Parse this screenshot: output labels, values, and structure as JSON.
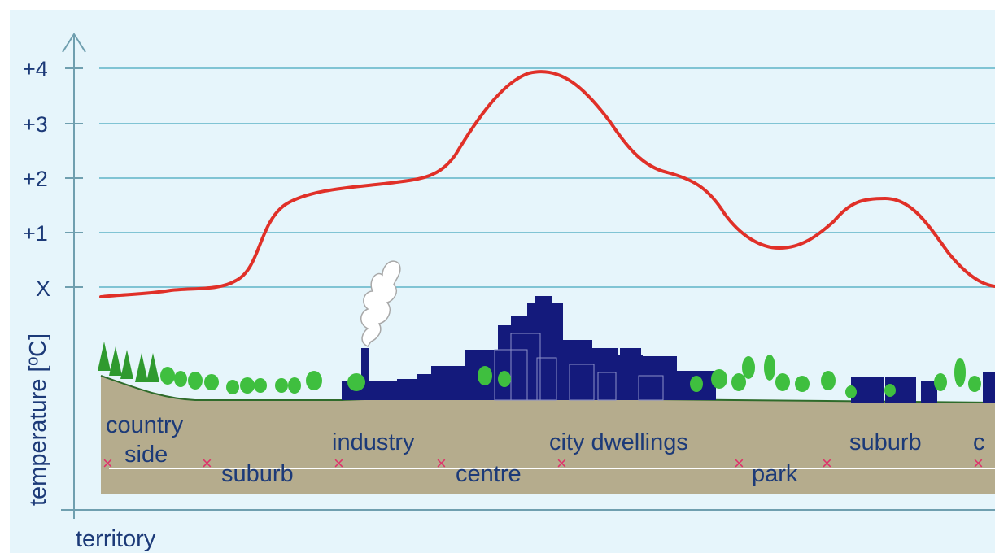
{
  "chart_data": {
    "type": "line",
    "xlabel": "territory",
    "ylabel": "temperature [ºC]",
    "y_ticks": [
      "+4",
      "+3",
      "+2",
      "+1",
      "X"
    ],
    "ylim": [
      "X",
      "+4"
    ],
    "grid": true,
    "series": [
      {
        "color": "#e03028",
        "x_zones": [
          "country side",
          "suburb",
          "industry",
          "centre",
          "city dwellings",
          "park",
          "suburb",
          "c"
        ],
        "points": [
          [
            "country side",
            0.15
          ],
          [
            "suburb",
            0.2
          ],
          [
            "industry",
            1.7
          ],
          [
            "centre",
            2.0
          ],
          [
            "city dwellings",
            4.0
          ],
          [
            "city dwellings",
            2.1
          ],
          [
            "park",
            0.75
          ],
          [
            "suburb",
            1.65
          ],
          [
            "c",
            0.0
          ]
        ]
      }
    ],
    "zone_labels": [
      "country",
      "side",
      "suburb",
      "industry",
      "centre",
      "city dwellings",
      "park",
      "suburb",
      "c"
    ]
  },
  "colors": {
    "background": "#e6f5fb",
    "grid": "#5fb3c7",
    "axis": "#6f9faf",
    "text": "#1c3a78",
    "curve": "#e03028",
    "ground": "#b5ac8d",
    "buildings": "#141a7c",
    "trees": "#3fbf3f",
    "markers": "#e0306a"
  }
}
